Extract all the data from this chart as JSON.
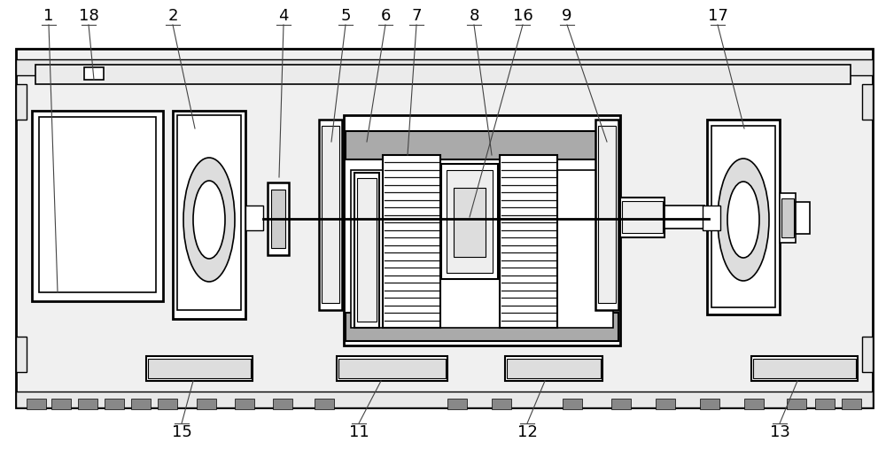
{
  "bg_color": "#ffffff",
  "lc": "#000000",
  "gray1": "#aaaaaa",
  "gray2": "#cccccc",
  "gray3": "#888888",
  "fig_width": 10.0,
  "fig_height": 5.08,
  "dpi": 100
}
